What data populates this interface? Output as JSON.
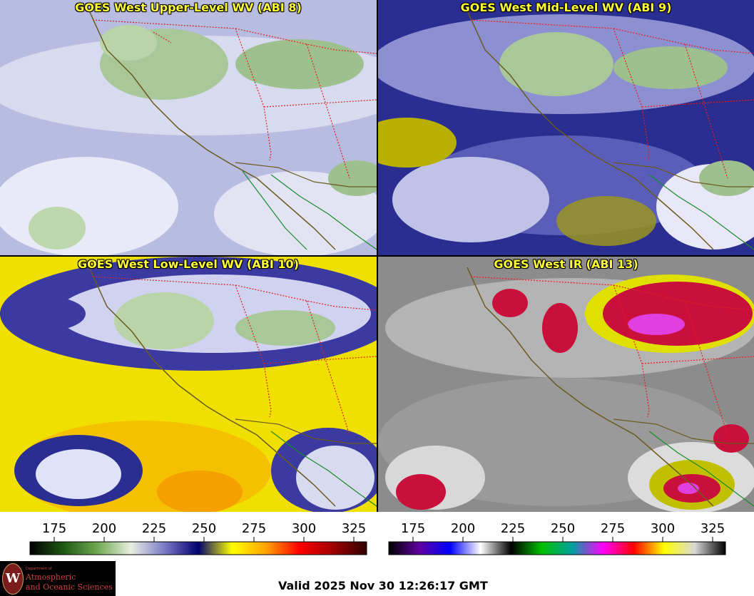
{
  "panels": [
    {
      "title": "GOES West Upper-Level WV (ABI 8)",
      "product": "upper-wv"
    },
    {
      "title": "GOES West Mid-Level WV (ABI 9)",
      "product": "mid-wv"
    },
    {
      "title": "GOES West Low-Level WV (ABI 10)",
      "product": "low-wv"
    },
    {
      "title": "GOES West IR (ABI 13)",
      "product": "ir"
    }
  ],
  "colorbars": {
    "wv": {
      "ticks": [
        "175",
        "200",
        "225",
        "250",
        "275",
        "300",
        "325"
      ],
      "colors": [
        "#000000",
        "#1f5a14",
        "#6fa850",
        "#e8f0e0",
        "#7a7ac8",
        "#000070",
        "#ffff00",
        "#ffa500",
        "#ff0000",
        "#a00000",
        "#300000"
      ]
    },
    "ir": {
      "ticks": [
        "175",
        "200",
        "225",
        "250",
        "275",
        "300",
        "325"
      ],
      "colors": [
        "#000000",
        "#6000a0",
        "#0000ff",
        "#ffffff",
        "#000000",
        "#00c000",
        "#00a0a0",
        "#ff00ff",
        "#ff0000",
        "#ffff00",
        "#d8d8d8",
        "#000000"
      ]
    }
  },
  "logo": {
    "line1": "Department of",
    "line2": "Atmospheric",
    "line3": "and Oceanic Sciences",
    "seal": "W"
  },
  "valid_time": "Valid 2025 Nov 30 12:26:17 GMT"
}
